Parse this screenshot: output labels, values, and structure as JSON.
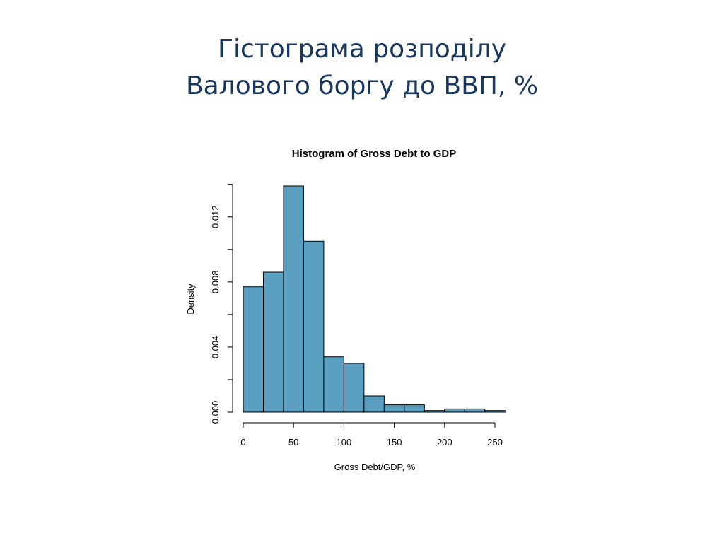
{
  "slide": {
    "title_line1": "Гістограма розподілу",
    "title_line2": "Валового боргу до ВВП, %"
  },
  "chart_data": {
    "type": "bar",
    "title": "Histogram of Gross Debt to GDP",
    "xlabel": "Gross Debt/GDP, %",
    "ylabel": "Density",
    "bin_width": 20,
    "bins": [
      {
        "start": 0,
        "end": 20,
        "density": 0.0077
      },
      {
        "start": 20,
        "end": 40,
        "density": 0.0086
      },
      {
        "start": 40,
        "end": 60,
        "density": 0.0139
      },
      {
        "start": 60,
        "end": 80,
        "density": 0.0105
      },
      {
        "start": 80,
        "end": 100,
        "density": 0.0034
      },
      {
        "start": 100,
        "end": 120,
        "density": 0.003
      },
      {
        "start": 120,
        "end": 140,
        "density": 0.001
      },
      {
        "start": 140,
        "end": 160,
        "density": 0.00045
      },
      {
        "start": 160,
        "end": 180,
        "density": 0.00045
      },
      {
        "start": 180,
        "end": 200,
        "density": 0.0001
      },
      {
        "start": 200,
        "end": 220,
        "density": 0.0002
      },
      {
        "start": 220,
        "end": 240,
        "density": 0.0002
      },
      {
        "start": 240,
        "end": 260,
        "density": 0.0001
      }
    ],
    "xlim": [
      0,
      260
    ],
    "ylim": [
      0,
      0.0139
    ],
    "x_ticks": [
      0,
      50,
      100,
      150,
      200,
      250
    ],
    "x_tick_labels": [
      "0",
      "50",
      "100",
      "150",
      "200",
      "250"
    ],
    "y_ticks": [
      0,
      0.002,
      0.004,
      0.006,
      0.008,
      0.01,
      0.012,
      0.014
    ],
    "y_tick_labels": [
      "0.000",
      "",
      "0.004",
      "",
      "0.008",
      "",
      "0.012",
      ""
    ],
    "bar_color": "#5a9fc0",
    "bar_border_color": "#000000",
    "grid": false
  }
}
